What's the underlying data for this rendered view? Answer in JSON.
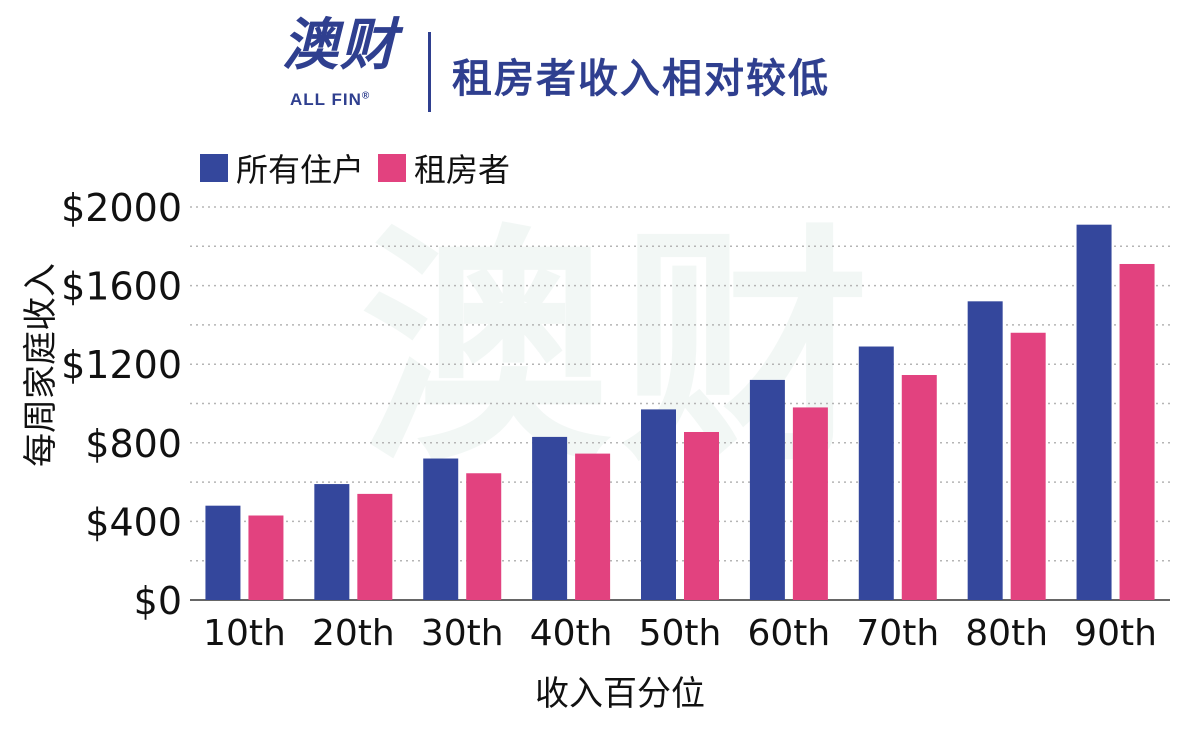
{
  "brand": {
    "logo_cn": "澳财",
    "logo_en": "ALL FIN",
    "registered": "®",
    "primary_color": "#2f3f8f"
  },
  "title": "租房者收入相对较低",
  "watermark": "澳财",
  "chart_data": {
    "type": "bar",
    "title": "租房者收入相对较低",
    "categories": [
      "10th",
      "20th",
      "30th",
      "40th",
      "50th",
      "60th",
      "70th",
      "80th",
      "90th"
    ],
    "series": [
      {
        "name": "所有住户",
        "color": "#34479c",
        "values": [
          480,
          590,
          720,
          830,
          970,
          1120,
          1290,
          1520,
          1910
        ]
      },
      {
        "name": "租房者",
        "color": "#e2427f",
        "values": [
          430,
          540,
          645,
          745,
          855,
          980,
          1145,
          1360,
          1710
        ]
      }
    ],
    "xlabel": "收入百分位",
    "ylabel": "每周家庭收入",
    "ylim": [
      0,
      2000
    ],
    "yticks": [
      0,
      400,
      800,
      1200,
      1600,
      2000
    ],
    "ytick_labels": [
      "$0",
      "$400",
      "$800",
      "$1200",
      "$1600",
      "$2000"
    ],
    "grid": true,
    "legend_position": "top-left"
  }
}
